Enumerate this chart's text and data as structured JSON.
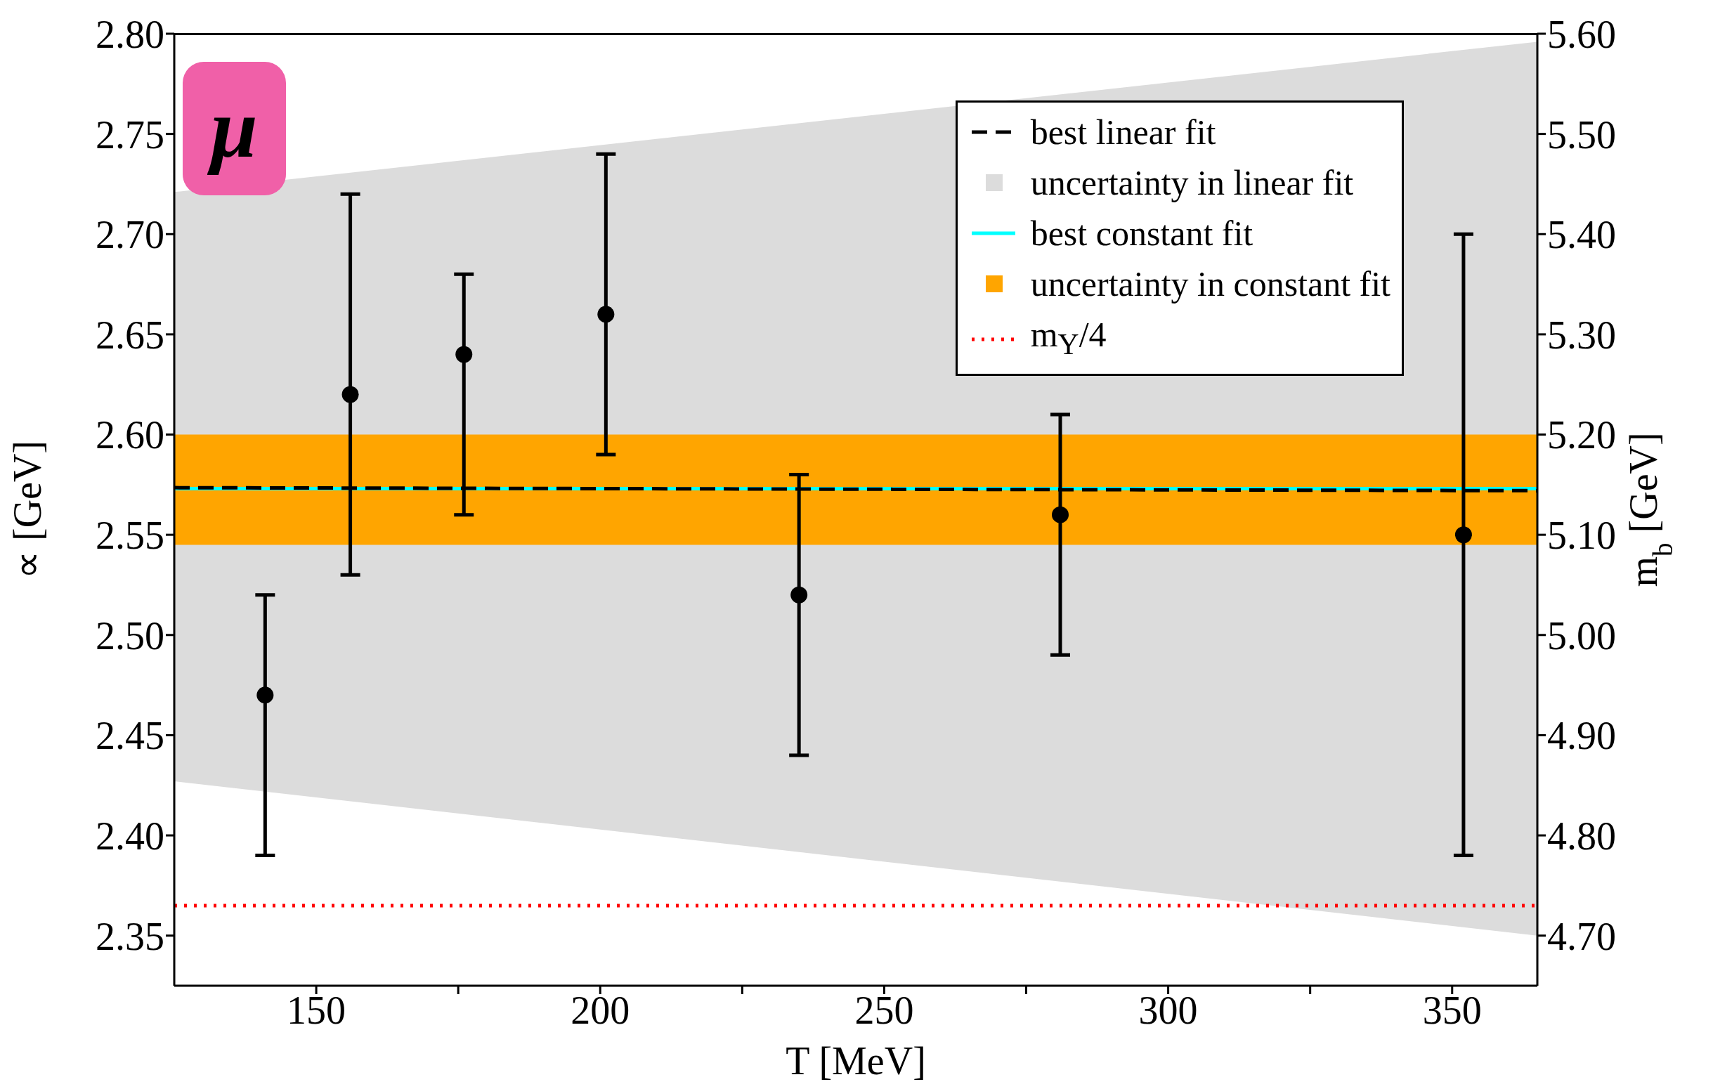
{
  "chart_data": {
    "type": "scatter",
    "xlabel": "T [MeV]",
    "ylabel": "∝ [GeV]",
    "y2label": "m$_{b}$ [GeV]",
    "xlim": [
      125,
      365
    ],
    "ylim": [
      2.325,
      2.8
    ],
    "y2lim": [
      4.65,
      5.6
    ],
    "xticks": [
      150,
      {
        "value": 175,
        "label": null
      },
      200,
      {
        "value": 225,
        "label": null
      },
      250,
      {
        "value": 275,
        "label": null
      },
      300,
      {
        "value": 325,
        "label": null
      },
      350
    ],
    "yticks": [
      {
        "value": 2.35,
        "label": "2.35"
      },
      {
        "value": 2.4,
        "label": "2.40"
      },
      {
        "value": 2.45,
        "label": "2.45"
      },
      {
        "value": 2.5,
        "label": "2.50"
      },
      {
        "value": 2.55,
        "label": "2.55"
      },
      {
        "value": 2.6,
        "label": "2.60"
      },
      {
        "value": 2.65,
        "label": "2.65"
      },
      {
        "value": 2.7,
        "label": "2.70"
      },
      {
        "value": 2.75,
        "label": "2.75"
      },
      {
        "value": 2.8,
        "label": "2.80"
      }
    ],
    "y2ticks": [
      {
        "value": 4.7,
        "label": "4.70"
      },
      {
        "value": 4.8,
        "label": "4.80"
      },
      {
        "value": 4.9,
        "label": "4.90"
      },
      {
        "value": 5.0,
        "label": "5.00"
      },
      {
        "value": 5.1,
        "label": "5.10"
      },
      {
        "value": 5.2,
        "label": "5.20"
      },
      {
        "value": 5.3,
        "label": "5.30"
      },
      {
        "value": 5.4,
        "label": "5.40"
      },
      {
        "value": 5.5,
        "label": "5.50"
      },
      {
        "value": 5.6,
        "label": "5.60"
      }
    ],
    "series": [
      {
        "type": "line",
        "name": "best linear fit",
        "color": "#000000",
        "x": [
          125,
          365
        ],
        "values": [
          2.5735,
          2.572
        ],
        "lower": [
          2.427,
          2.35
        ],
        "upper": [
          2.721,
          2.796
        ],
        "line_style": "dashed"
      },
      {
        "type": "line",
        "name": "best constant fit",
        "color": "#00ffff",
        "x": [
          125,
          365
        ],
        "values": [
          2.573,
          2.573
        ],
        "line_style": "solid"
      },
      {
        "color": "#000000",
        "x": [
          141,
          156,
          176,
          201,
          235,
          281,
          352
        ],
        "values": [
          2.47,
          2.62,
          2.64,
          2.66,
          2.52,
          2.56,
          2.55
        ],
        "errors": [
          [
            2.39,
            2.52
          ],
          [
            2.53,
            2.72
          ],
          [
            2.56,
            2.68
          ],
          [
            2.59,
            2.74
          ],
          [
            2.44,
            2.58
          ],
          [
            2.49,
            2.61
          ],
          [
            2.39,
            2.7
          ]
        ],
        "marker": "circle"
      }
    ],
    "bands": [
      {
        "axis": "y",
        "from": 2.545,
        "to": 2.6,
        "label": "uncertainty in constant fit",
        "color": "#ffa500"
      }
    ],
    "ref_lines": [
      {
        "axis": "y",
        "value": 2.365,
        "label": "m$_{Υ}$/4",
        "color": "#ff0000",
        "line_style": "dotted"
      }
    ],
    "annotations": [
      "μ",
      "uncertainty in linear fit"
    ],
    "legend": "top right"
  }
}
